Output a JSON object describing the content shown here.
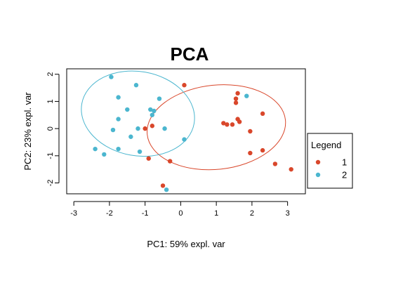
{
  "chart_data": {
    "type": "scatter",
    "title": "PCA",
    "xlabel": "PC1: 59% expl. var",
    "ylabel": "PC2: 23% expl. var",
    "xlim": [
      -3.2,
      3.5
    ],
    "ylim": [
      -2.4,
      2.2
    ],
    "xticks": [
      -3,
      -2,
      -1,
      0,
      1,
      2,
      3
    ],
    "yticks": [
      -2,
      -1,
      0,
      1,
      2
    ],
    "grid": false,
    "legend": {
      "title": "Legend",
      "placement": "right"
    },
    "series": [
      {
        "name": "1",
        "color": "#d9472b",
        "points": [
          [
            0.1,
            1.6
          ],
          [
            -1.0,
            0.0
          ],
          [
            -0.8,
            0.1
          ],
          [
            -0.9,
            -1.1
          ],
          [
            -0.3,
            -1.2
          ],
          [
            -0.5,
            -2.1
          ],
          [
            1.2,
            0.2
          ],
          [
            1.3,
            0.15
          ],
          [
            1.45,
            0.15
          ],
          [
            1.6,
            0.35
          ],
          [
            1.65,
            0.25
          ],
          [
            1.55,
            1.1
          ],
          [
            1.55,
            0.95
          ],
          [
            1.6,
            1.3
          ],
          [
            2.3,
            0.55
          ],
          [
            1.95,
            -0.1
          ],
          [
            1.95,
            -0.9
          ],
          [
            2.3,
            -0.8
          ],
          [
            2.65,
            -1.3
          ],
          [
            3.1,
            -1.5
          ]
        ],
        "ellipse": {
          "cx": 1.0,
          "cy": 0.05,
          "rx": 1.95,
          "ry": 1.55,
          "angle_deg": -6
        }
      },
      {
        "name": "2",
        "color": "#4bb6cf",
        "points": [
          [
            -1.95,
            1.9
          ],
          [
            -1.25,
            1.6
          ],
          [
            -1.75,
            1.15
          ],
          [
            -1.5,
            0.7
          ],
          [
            -0.85,
            0.7
          ],
          [
            -0.75,
            0.65
          ],
          [
            -0.6,
            1.1
          ],
          [
            -0.8,
            0.5
          ],
          [
            -1.75,
            0.35
          ],
          [
            -1.9,
            -0.05
          ],
          [
            -1.2,
            0.0
          ],
          [
            -0.45,
            0.0
          ],
          [
            -1.4,
            -0.3
          ],
          [
            -2.4,
            -0.75
          ],
          [
            -1.75,
            -0.75
          ],
          [
            -2.15,
            -0.95
          ],
          [
            -1.15,
            -0.85
          ],
          [
            0.1,
            -0.4
          ],
          [
            -0.4,
            -2.25
          ],
          [
            1.85,
            1.2
          ]
        ],
        "ellipse": {
          "cx": -1.2,
          "cy": 0.55,
          "rx": 1.6,
          "ry": 1.55,
          "angle_deg": 10
        }
      }
    ]
  }
}
